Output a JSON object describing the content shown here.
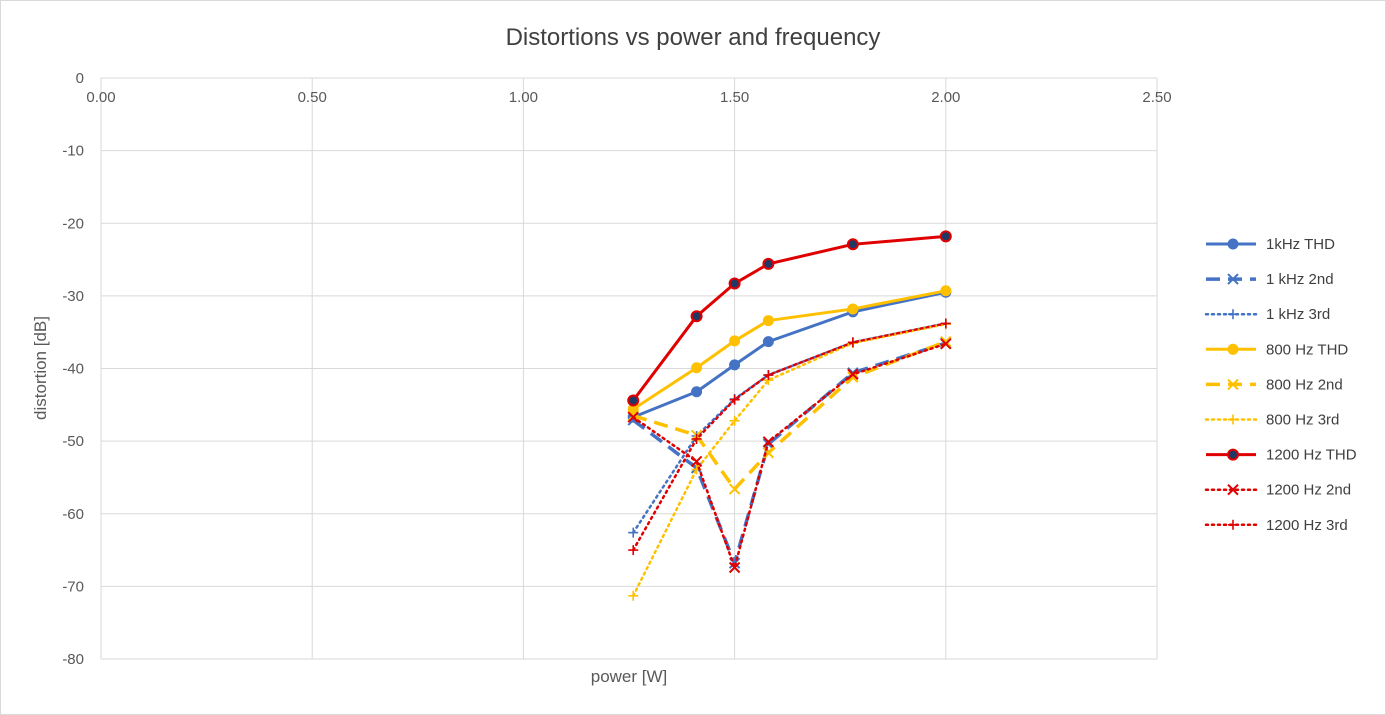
{
  "chart_data": {
    "type": "scatter",
    "title": "Distortions vs power and frequency",
    "xlabel": "power [W]",
    "ylabel": "distortion [dB]",
    "xlim": [
      0,
      2.5
    ],
    "ylim": [
      -80,
      0
    ],
    "x_ticks": [
      "0.00",
      "0.50",
      "1.00",
      "1.50",
      "2.00",
      "2.50"
    ],
    "y_ticks": [
      "0",
      "-10",
      "-20",
      "-30",
      "-40",
      "-50",
      "-60",
      "-70",
      "-80"
    ],
    "grid": true,
    "x_axis_position": "top",
    "legend_position": "right",
    "series": [
      {
        "name": "1kHz THD",
        "color": "#4472c4",
        "dash": "solid",
        "marker": "circle",
        "x": [
          1.26,
          1.41,
          1.5,
          1.58,
          1.78,
          2.0
        ],
        "y": [
          -46.7,
          -43.2,
          -39.5,
          -36.3,
          -32.2,
          -29.5
        ]
      },
      {
        "name": "1 kHz 2nd",
        "color": "#4472c4",
        "dash": "dash",
        "marker": "x",
        "x": [
          1.26,
          1.41,
          1.5,
          1.58,
          1.78,
          2.0
        ],
        "y": [
          -47.1,
          -53.7,
          -66.8,
          -50.4,
          -40.6,
          -36.5
        ]
      },
      {
        "name": "1 kHz 3rd",
        "color": "#4472c4",
        "dash": "dot",
        "marker": "plus",
        "x": [
          1.26,
          1.41,
          1.5,
          1.58,
          1.78,
          2.0
        ],
        "y": [
          -62.6,
          -49.3,
          -44.2,
          -40.9,
          -36.4,
          -33.8
        ]
      },
      {
        "name": "800 Hz THD",
        "color": "#ffc000",
        "dash": "solid",
        "marker": "circle",
        "x": [
          1.26,
          1.41,
          1.5,
          1.58,
          1.78,
          2.0
        ],
        "y": [
          -45.6,
          -39.9,
          -36.2,
          -33.4,
          -31.8,
          -29.3
        ]
      },
      {
        "name": "800 Hz 2nd",
        "color": "#ffc000",
        "dash": "dash",
        "marker": "x",
        "x": [
          1.26,
          1.41,
          1.5,
          1.58,
          1.78,
          2.0
        ],
        "y": [
          -46.5,
          -49.2,
          -56.6,
          -51.6,
          -41.2,
          -36.3
        ]
      },
      {
        "name": "800 Hz 3rd",
        "color": "#ffc000",
        "dash": "dot",
        "marker": "plus",
        "x": [
          1.26,
          1.41,
          1.5,
          1.58,
          1.78,
          2.0
        ],
        "y": [
          -71.3,
          -53.9,
          -47.2,
          -41.6,
          -36.5,
          -33.9
        ]
      },
      {
        "name": "1200 Hz THD",
        "color": "#e00000",
        "dash": "solid",
        "marker": "circle-dark",
        "x": [
          1.26,
          1.41,
          1.5,
          1.58,
          1.78,
          2.0
        ],
        "y": [
          -44.4,
          -32.8,
          -28.3,
          -25.6,
          -22.9,
          -21.8
        ]
      },
      {
        "name": "1200 Hz 2nd",
        "color": "#e00000",
        "dash": "dot",
        "marker": "x",
        "x": [
          1.26,
          1.41,
          1.5,
          1.58,
          1.78,
          2.0
        ],
        "y": [
          -46.7,
          -52.8,
          -67.4,
          -50.1,
          -40.8,
          -36.6
        ]
      },
      {
        "name": "1200 Hz 3rd",
        "color": "#e00000",
        "dash": "dot",
        "marker": "plus",
        "x": [
          1.26,
          1.41,
          1.5,
          1.58,
          1.78,
          2.0
        ],
        "y": [
          -65.0,
          -49.7,
          -44.3,
          -40.9,
          -36.4,
          -33.8
        ]
      }
    ]
  }
}
